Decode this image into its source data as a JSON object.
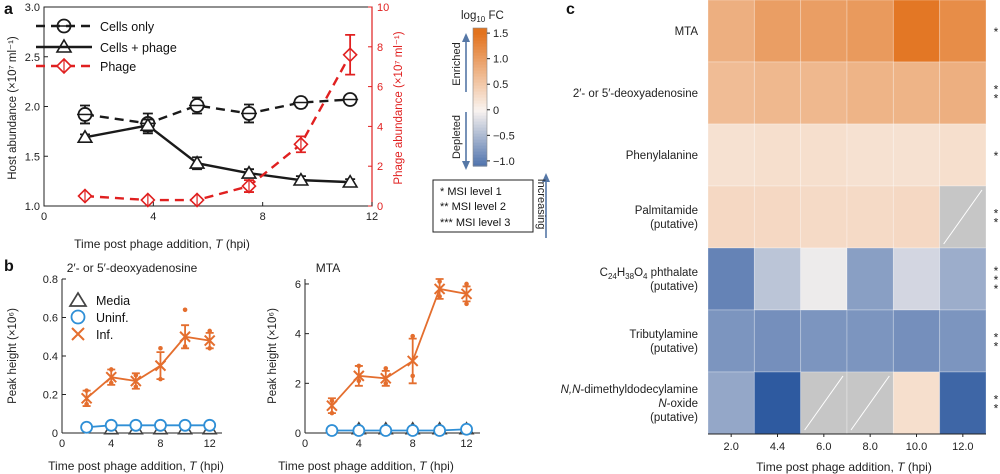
{
  "panel_labels": {
    "a": "a",
    "b": "b",
    "c": "c"
  },
  "colors": {
    "black": "#1a1a1a",
    "red": "#e02020",
    "blue": "#2f8fd6",
    "orange": "#e46e2e",
    "enriched": "#e2731e",
    "depleted": "#2e5fa0",
    "missing": "#c6c6c6",
    "axis_blue": "#5577a6"
  },
  "chart_data": [
    {
      "id": "panel_a",
      "type": "line",
      "xlabel_prefix": "Time post phage addition, ",
      "xlabel_var": "T",
      "xlabel_suffix": " (hpi)",
      "ylabel": "Host abundance (×10⁷ ml⁻¹)",
      "ylabel_right": "Phage abundance (×10⁷ ml⁻¹)",
      "xlim": [
        0,
        12
      ],
      "ylim": [
        1.0,
        3.0
      ],
      "ylim_right": [
        0,
        10
      ],
      "xticks": [
        0,
        4,
        8,
        12
      ],
      "yticks": [
        1.0,
        1.5,
        2.0,
        2.5,
        3.0
      ],
      "yticks_right": [
        0,
        2,
        4,
        6,
        8,
        10
      ],
      "series": [
        {
          "name": "Cells only",
          "axis": "left",
          "style": "dashed",
          "color": "#1a1a1a",
          "marker": "circle",
          "x": [
            1.5,
            3.8,
            5.6,
            7.5,
            9.4,
            11.2
          ],
          "y": [
            1.92,
            1.83,
            2.01,
            1.93,
            2.04,
            2.07
          ],
          "err": [
            0.09,
            0.1,
            0.08,
            0.09,
            0.05,
            0.04
          ]
        },
        {
          "name": "Cells + phage",
          "axis": "left",
          "style": "solid",
          "color": "#1a1a1a",
          "marker": "triangle",
          "x": [
            1.5,
            3.8,
            5.6,
            7.5,
            9.4,
            11.2
          ],
          "y": [
            1.69,
            1.81,
            1.43,
            1.33,
            1.26,
            1.24
          ],
          "err": [
            0.03,
            0.06,
            0.06,
            0.04,
            0.04,
            0.03
          ]
        },
        {
          "name": "Phage",
          "axis": "right",
          "style": "dashed",
          "color": "#e02020",
          "marker": "diamond",
          "x": [
            1.5,
            3.8,
            5.6,
            7.5,
            9.4,
            11.2
          ],
          "y": [
            0.5,
            0.3,
            0.3,
            1.0,
            3.1,
            7.6
          ],
          "err": [
            0.1,
            0.05,
            0.1,
            0.3,
            0.4,
            1.0
          ]
        }
      ]
    },
    {
      "id": "panel_b_left",
      "type": "scatter",
      "title": "2′- or 5′-deoxyadenosine",
      "xlabel_prefix": "Time post phage addition, ",
      "xlabel_var": "T",
      "xlabel_suffix": " (hpi)",
      "ylabel": "Peak height (×10⁶)",
      "xlim": [
        0,
        13
      ],
      "ylim": [
        0,
        0.8
      ],
      "xticks": [
        0,
        4,
        8,
        12
      ],
      "yticks": [
        0,
        0.2,
        0.4,
        0.6,
        0.8
      ],
      "series": [
        {
          "name": "Media",
          "marker": "triangle",
          "color": "#444444",
          "x": [
            4,
            6,
            8,
            10,
            12
          ],
          "y": [
            0,
            0,
            0,
            0,
            0
          ]
        },
        {
          "name": "Uninf.",
          "marker": "circle",
          "color": "#2f8fd6",
          "x": [
            2,
            4,
            6,
            8,
            10,
            12
          ],
          "y": [
            0.03,
            0.04,
            0.04,
            0.04,
            0.04,
            0.04
          ]
        },
        {
          "name": "Inf.",
          "marker": "x",
          "color": "#e46e2e",
          "x": [
            2,
            4,
            6,
            8,
            10,
            12
          ],
          "y": [
            0.18,
            0.29,
            0.27,
            0.35,
            0.5,
            0.48
          ],
          "err": [
            0.04,
            0.04,
            0.04,
            0.07,
            0.06,
            0.04
          ],
          "points": [
            [
              2,
              0.15
            ],
            [
              2,
              0.22
            ],
            [
              4,
              0.26
            ],
            [
              4,
              0.33
            ],
            [
              6,
              0.24
            ],
            [
              6,
              0.3
            ],
            [
              8,
              0.28
            ],
            [
              8,
              0.44
            ],
            [
              10,
              0.45
            ],
            [
              10,
              0.64
            ],
            [
              12,
              0.44
            ],
            [
              12,
              0.53
            ]
          ]
        }
      ]
    },
    {
      "id": "panel_b_right",
      "type": "scatter",
      "title": "MTA",
      "xlabel_prefix": "Time post phage addition, ",
      "xlabel_var": "T",
      "xlabel_suffix": " (hpi)",
      "ylabel": "Peak height (×10⁶)",
      "xlim": [
        0,
        13
      ],
      "ylim": [
        0,
        6.2
      ],
      "xticks": [
        0,
        4,
        8,
        12
      ],
      "yticks": [
        0,
        2,
        4,
        6
      ],
      "series": [
        {
          "name": "Media",
          "marker": "triangle",
          "color": "#444444",
          "x": [
            4,
            6,
            8,
            10,
            12
          ],
          "y": [
            0,
            0,
            0,
            0,
            0
          ]
        },
        {
          "name": "Uninf.",
          "marker": "circle",
          "color": "#2f8fd6",
          "x": [
            2,
            4,
            6,
            8,
            10,
            12
          ],
          "y": [
            0.1,
            0.1,
            0.1,
            0.1,
            0.1,
            0.15
          ]
        },
        {
          "name": "Inf.",
          "marker": "x",
          "color": "#e46e2e",
          "x": [
            2,
            4,
            6,
            8,
            10,
            12
          ],
          "y": [
            1.1,
            2.3,
            2.2,
            2.9,
            5.8,
            5.6
          ],
          "err": [
            0.3,
            0.4,
            0.3,
            0.9,
            0.4,
            0.3
          ],
          "points": [
            [
              2,
              0.8
            ],
            [
              2,
              1.3
            ],
            [
              4,
              2.1
            ],
            [
              4,
              2.7
            ],
            [
              6,
              2.0
            ],
            [
              6,
              2.6
            ],
            [
              8,
              2.3
            ],
            [
              8,
              3.9
            ],
            [
              10,
              5.5
            ],
            [
              10,
              6.1
            ],
            [
              12,
              5.2
            ],
            [
              12,
              6.0
            ]
          ]
        }
      ]
    },
    {
      "id": "panel_c",
      "type": "heatmap",
      "colorbar_title_prefix": "log",
      "colorbar_title_sub": "10",
      "colorbar_title_suffix": " FC",
      "colorbar_range": [
        -1.1,
        1.6
      ],
      "colorbar_ticks": [
        "1.5",
        "1.0",
        "0.5",
        "0",
        "−0.5",
        "−1.0"
      ],
      "colorbar_tick_values": [
        1.5,
        1.0,
        0.5,
        0,
        -0.5,
        -1.0
      ],
      "enriched_label": "Enriched",
      "depleted_label": "Depleted",
      "increasing_label": "Increasing",
      "msi_legend": [
        "* MSI level 1",
        "** MSI level 2",
        "*** MSI level 3"
      ],
      "xlabel_prefix": "Time post phage addition, ",
      "xlabel_var": "T",
      "xlabel_suffix": " (hpi)",
      "columns": [
        "2.0",
        "4.4",
        "6.0",
        "8.0",
        "10.0",
        "12.0"
      ],
      "rows": [
        {
          "label_lines": [
            [
              "MTA"
            ]
          ],
          "stars": "*",
          "values": [
            0.8,
            1.0,
            1.0,
            1.05,
            1.45,
            1.2
          ]
        },
        {
          "label_lines": [
            [
              "2′- or 5′-deoxyadenosine"
            ]
          ],
          "stars": "**",
          "values": [
            0.65,
            0.7,
            0.7,
            0.75,
            0.75,
            0.8
          ]
        },
        {
          "label_lines": [
            [
              "Phenylalanine"
            ]
          ],
          "stars": "*",
          "values": [
            0.22,
            0.25,
            0.25,
            0.22,
            0.22,
            0.25
          ]
        },
        {
          "label_lines": [
            [
              "Palmitamide"
            ],
            [
              "(putative)"
            ]
          ],
          "stars": "**",
          "values": [
            0.32,
            0.32,
            0.3,
            0.3,
            0.32,
            null
          ]
        },
        {
          "label_lines": [
            [
              "C",
              "24",
              "H",
              "38",
              "O",
              "4",
              " phthalate"
            ],
            [
              "(putative)"
            ]
          ],
          "stars": "***",
          "values": [
            -0.95,
            -0.4,
            -0.08,
            -0.72,
            -0.25,
            -0.6
          ]
        },
        {
          "label_lines": [
            [
              "Tributylamine"
            ],
            [
              "(putative)"
            ]
          ],
          "stars": "**",
          "values": [
            -0.8,
            -0.85,
            -0.8,
            -0.8,
            -0.85,
            -0.8
          ]
        },
        {
          "label_lines": [
            [
              "N,N",
              "-dimethyldodecylamine"
            ],
            [
              "N",
              "-oxide"
            ],
            [
              "(putative)"
            ]
          ],
          "stars": "**",
          "values": [
            -0.65,
            -1.3,
            null,
            null,
            0.25,
            -1.2
          ]
        }
      ]
    }
  ]
}
